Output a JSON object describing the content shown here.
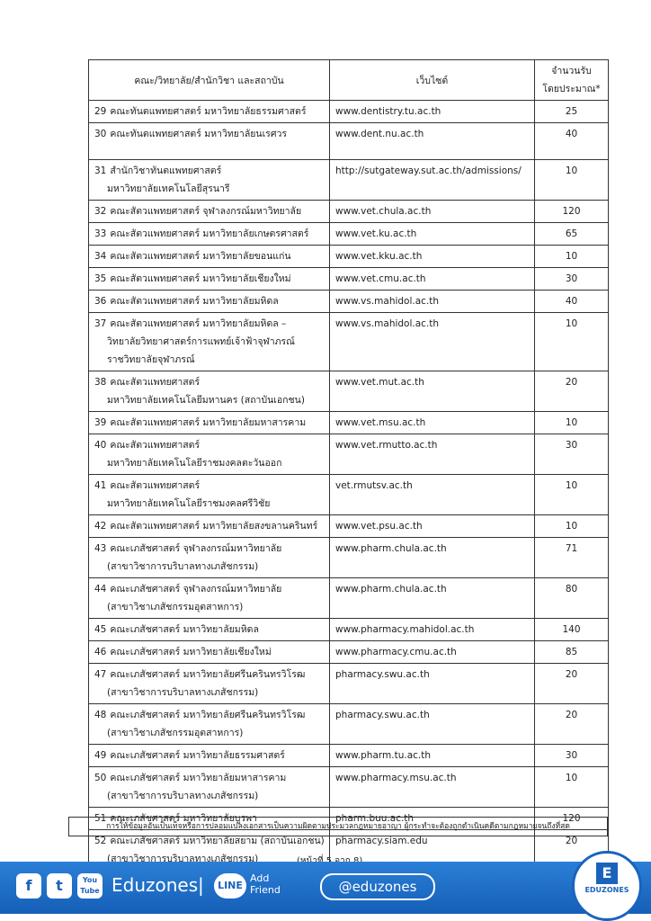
{
  "header": {
    "faculty": "คณะ/วิทยาลัย/สำนักวิชา และสถาบัน",
    "website": "เว็บไซต์",
    "count": [
      "จำนวนรับ",
      "โดยประมาณ*"
    ]
  },
  "table": {
    "rows": [
      {
        "no": 29,
        "lines": [
          "คณะทันตแพทยศาสตร์ มหาวิทยาลัยธรรมศาสตร์"
        ],
        "website": "www.dentistry.tu.ac.th",
        "count": 25
      },
      {
        "no": 30,
        "lines": [
          "คณะทันตแพทยศาสตร์ มหาวิทยาลัยนเรศวร"
        ],
        "website": "www.dent.nu.ac.th",
        "count": 40
      },
      {
        "no": 31,
        "lines": [
          "สำนักวิชาทันตแพทยศาสตร์",
          "มหาวิทยาลัยเทคโนโลยีสุรนารี"
        ],
        "website": "http://sutgateway.sut.ac.th/admissions/",
        "count": 10
      },
      {
        "no": 32,
        "lines": [
          "คณะสัตวแพทยศาสตร์ จุฬาลงกรณ์มหาวิทยาลัย"
        ],
        "website": "www.vet.chula.ac.th",
        "count": 120
      },
      {
        "no": 33,
        "lines": [
          "คณะสัตวแพทยศาสตร์ มหาวิทยาลัยเกษตรศาสตร์"
        ],
        "website": "www.vet.ku.ac.th",
        "count": 65
      },
      {
        "no": 34,
        "lines": [
          "คณะสัตวแพทยศาสตร์ มหาวิทยาลัยขอนแก่น"
        ],
        "website": "www.vet.kku.ac.th",
        "count": 10
      },
      {
        "no": 35,
        "lines": [
          "คณะสัตวแพทยศาสตร์ มหาวิทยาลัยเชียงใหม่"
        ],
        "website": "www.vet.cmu.ac.th",
        "count": 30
      },
      {
        "no": 36,
        "lines": [
          "คณะสัตวแพทยศาสตร์ มหาวิทยาลัยมหิดล"
        ],
        "website": "www.vs.mahidol.ac.th",
        "count": 40
      },
      {
        "no": 37,
        "lines": [
          "คณะสัตวแพทยศาสตร์ มหาวิทยาลัยมหิดล –",
          "วิทยาลัยวิทยาศาสตร์การแพทย์เจ้าฟ้าจุฬาภรณ์",
          "ราชวิทยาลัยจุฬาภรณ์"
        ],
        "website": "www.vs.mahidol.ac.th",
        "count": 10
      },
      {
        "no": 38,
        "lines": [
          "คณะสัตวแพทยศาสตร์",
          "มหาวิทยาลัยเทคโนโลยีมหานคร (สถาบันเอกชน)"
        ],
        "website": "www.vet.mut.ac.th",
        "count": 20
      },
      {
        "no": 39,
        "lines": [
          "คณะสัตวแพทยศาสตร์ มหาวิทยาลัยมหาสารคาม"
        ],
        "website": "www.vet.msu.ac.th",
        "count": 10
      },
      {
        "no": 40,
        "lines": [
          "คณะสัตวแพทยศาสตร์",
          "มหาวิทยาลัยเทคโนโลยีราชมงคลตะวันออก"
        ],
        "website": "www.vet.rmutto.ac.th",
        "count": 30
      },
      {
        "no": 41,
        "lines": [
          "คณะสัตวแพทยศาสตร์",
          "มหาวิทยาลัยเทคโนโลยีราชมงคลศรีวิชัย"
        ],
        "website": "vet.rmutsv.ac.th",
        "count": 10
      },
      {
        "no": 42,
        "lines": [
          "คณะสัตวแพทยศาสตร์ มหาวิทยาลัยสงขลานครินทร์"
        ],
        "website": "www.vet.psu.ac.th",
        "count": 10
      },
      {
        "no": 43,
        "lines": [
          "คณะเภสัชศาสตร์ จุฬาลงกรณ์มหาวิทยาลัย",
          "(สาขาวิชาการบริบาลทางเภสัชกรรม)"
        ],
        "website": "www.pharm.chula.ac.th",
        "count": 71
      },
      {
        "no": 44,
        "lines": [
          "คณะเภสัชศาสตร์ จุฬาลงกรณ์มหาวิทยาลัย",
          "(สาขาวิชาเภสัชกรรมอุตสาหการ)"
        ],
        "website": "www.pharm.chula.ac.th",
        "count": 80
      },
      {
        "no": 45,
        "lines": [
          "คณะเภสัชศาสตร์ มหาวิทยาลัยมหิดล"
        ],
        "website": "www.pharmacy.mahidol.ac.th",
        "count": 140
      },
      {
        "no": 46,
        "lines": [
          "คณะเภสัชศาสตร์ มหาวิทยาลัยเชียงใหม่"
        ],
        "website": "www.pharmacy.cmu.ac.th",
        "count": 85
      },
      {
        "no": 47,
        "lines": [
          "คณะเภสัชศาสตร์ มหาวิทยาลัยศรีนครินทรวิโรฒ",
          "(สาขาวิชาการบริบาลทางเภสัชกรรม)"
        ],
        "website": "pharmacy.swu.ac.th",
        "count": 20
      },
      {
        "no": 48,
        "lines": [
          "คณะเภสัชศาสตร์ มหาวิทยาลัยศรีนครินทรวิโรฒ",
          "(สาขาวิชาเภสัชกรรมอุตสาหการ)"
        ],
        "website": "pharmacy.swu.ac.th",
        "count": 20
      },
      {
        "no": 49,
        "lines": [
          "คณะเภสัชศาสตร์ มหาวิทยาลัยธรรมศาสตร์"
        ],
        "website": "www.pharm.tu.ac.th",
        "count": 30
      },
      {
        "no": 50,
        "lines": [
          "คณะเภสัชศาสตร์ มหาวิทยาลัยมหาสารคาม",
          "(สาขาวิชาการบริบาลทางเภสัชกรรม)"
        ],
        "website": "www.pharmacy.msu.ac.th",
        "count": 10
      },
      {
        "no": 51,
        "lines": [
          "คณะเภสัชศาสตร์ มหาวิทยาลัยบูรพา"
        ],
        "website": "pharm.buu.ac.th",
        "count": 120
      },
      {
        "no": 52,
        "lines": [
          "คณะเภสัชศาสตร์ มหาวิทยาลัยสยาม (สถาบันเอกชน)",
          "(สาขาวิชาการบริบาลทางเภสัชกรรม)"
        ],
        "website": "pharmacy.siam.edu",
        "count": 20
      }
    ]
  },
  "footer": {
    "note": "การให้ข้อมูลอันเป็นเท็จหรือการปลอมแปลงเอกสารเป็นความผิดตามประมวลกฎหมายอาญา ผู้กระทำจะต้องถูกดำเนินคดีตามกฎหมายจนถึงที่สุด",
    "page": "(หน้าที่ 5 จาก 8)"
  },
  "banner": {
    "youtube": [
      "You",
      "Tube"
    ],
    "brand": "Eduzones",
    "separator": "|",
    "line": "LINE",
    "add": [
      "Add",
      "Friend"
    ],
    "handle": "@eduzones",
    "logo_letter": "E",
    "logo_text": "EDUZONES"
  }
}
